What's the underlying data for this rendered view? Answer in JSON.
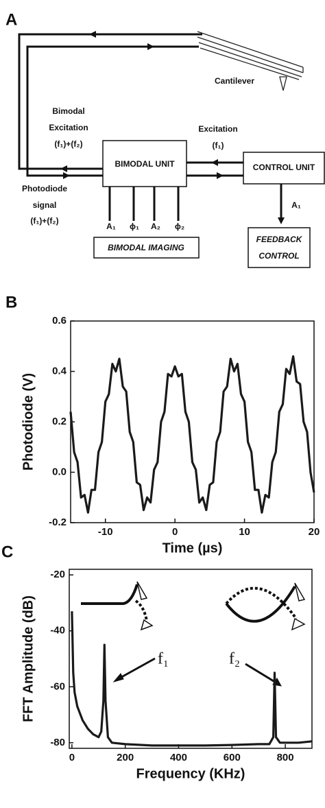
{
  "diagram": {
    "panel_label": "A",
    "cantilever": "Cantilever",
    "bimodal_excitation": [
      "Bimodal",
      "Excitation",
      "(f₁)+(f₂)"
    ],
    "excitation": [
      "Excitation",
      "(f₁)"
    ],
    "photodiode_signal": [
      "Photodiode",
      "signal",
      "(f₁)+(f₂)"
    ],
    "bimodal_unit": "BIMODAL UNIT",
    "control_unit": "CONTROL UNIT",
    "outputs": [
      "A₁",
      "ϕ₁",
      "A₂",
      "ϕ₂"
    ],
    "bimodal_imaging": "BIMODAL IMAGING",
    "control_output": "A₁",
    "feedback_control": [
      "FEEDBACK",
      "CONTROL"
    ]
  },
  "chart_data": [
    {
      "type": "line",
      "panel_label": "B",
      "x_label": "Time (µs)",
      "y_label": "Photodiode (V)",
      "color": "#1a1a1a",
      "xlim": [
        -15,
        20
      ],
      "xticks": [
        -10,
        0,
        10,
        20
      ],
      "ylim": [
        -0.2,
        0.6
      ],
      "yticks": [
        -0.2,
        {
          "value": 0,
          "label": "0.0"
        },
        0.2,
        0.4,
        0.6
      ],
      "x": [
        -15,
        -14.5,
        -14,
        -13.5,
        -13,
        -12.5,
        -12,
        -11.5,
        -11,
        -10.5,
        -10,
        -9.5,
        -9,
        -8.5,
        -8,
        -7.5,
        -7,
        -6.5,
        -6,
        -5.5,
        -5,
        -4.5,
        -4,
        -3.5,
        -3,
        -2.5,
        -2,
        -1.5,
        -1,
        -0.5,
        0,
        0.5,
        1,
        1.5,
        2,
        2.5,
        3,
        3.5,
        4,
        4.5,
        5,
        5.5,
        6,
        6.5,
        7,
        7.5,
        8,
        8.5,
        9,
        9.5,
        10,
        10.5,
        11,
        11.5,
        12,
        12.5,
        13,
        13.5,
        14,
        14.5,
        15,
        15.5,
        16,
        16.5,
        17,
        17.5,
        18,
        18.5,
        19,
        19.5,
        20
      ],
      "values": [
        0.24,
        0.08,
        0.04,
        -0.1,
        -0.09,
        -0.16,
        -0.07,
        -0.07,
        0.08,
        0.12,
        0.28,
        0.31,
        0.43,
        0.4,
        0.45,
        0.34,
        0.32,
        0.16,
        0.12,
        -0.04,
        -0.05,
        -0.15,
        -0.1,
        -0.12,
        0.01,
        0.04,
        0.2,
        0.24,
        0.39,
        0.38,
        0.42,
        0.38,
        0.39,
        0.24,
        0.2,
        0.04,
        0.01,
        -0.12,
        -0.1,
        -0.15,
        -0.05,
        -0.04,
        0.12,
        0.16,
        0.32,
        0.34,
        0.45,
        0.4,
        0.43,
        0.31,
        0.28,
        0.12,
        0.08,
        -0.07,
        -0.07,
        -0.16,
        -0.09,
        -0.1,
        0.04,
        0.08,
        0.24,
        0.27,
        0.41,
        0.39,
        0.46,
        0.36,
        0.35,
        0.2,
        0.16,
        0.0,
        -0.08
      ]
    },
    {
      "type": "line",
      "panel_label": "C",
      "x_label": "Frequency (KHz)",
      "y_label": "FFT Amplitude (dB)",
      "color": "#1a1a1a",
      "xlim": [
        -10,
        900
      ],
      "xticks": [
        0,
        200,
        400,
        600,
        800
      ],
      "ylim": [
        -82,
        -18
      ],
      "yticks": [
        -20,
        -40,
        -60,
        -80
      ],
      "x": [
        0,
        5,
        10,
        20,
        40,
        60,
        80,
        100,
        110,
        118,
        122,
        126,
        135,
        150,
        200,
        300,
        400,
        500,
        600,
        700,
        740,
        755,
        760,
        765,
        780,
        850,
        900
      ],
      "values": [
        -33,
        -55,
        -62,
        -67,
        -72,
        -75,
        -77,
        -78,
        -76,
        -65,
        -45,
        -65,
        -78,
        -80,
        -80.5,
        -81,
        -81,
        -81,
        -80.8,
        -80.5,
        -80.5,
        -78,
        -55,
        -78,
        -80,
        -80,
        -79.5
      ],
      "annotations": [
        "f₁",
        "f₂"
      ]
    }
  ]
}
